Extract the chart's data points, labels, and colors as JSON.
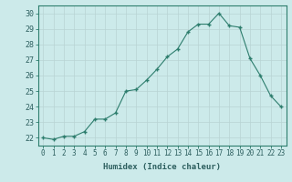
{
  "x": [
    0,
    1,
    2,
    3,
    4,
    5,
    6,
    7,
    8,
    9,
    10,
    11,
    12,
    13,
    14,
    15,
    16,
    17,
    18,
    19,
    20,
    21,
    22,
    23
  ],
  "y": [
    22.0,
    21.9,
    22.1,
    22.1,
    22.4,
    23.2,
    23.2,
    23.6,
    25.0,
    25.1,
    25.7,
    26.4,
    27.2,
    27.7,
    28.8,
    29.3,
    29.3,
    30.0,
    29.2,
    29.1,
    27.1,
    26.0,
    24.7,
    24.0
  ],
  "xlabel": "Humidex (Indice chaleur)",
  "ylim": [
    21.5,
    30.5
  ],
  "xlim": [
    -0.5,
    23.5
  ],
  "line_color": "#2d7d6d",
  "marker_color": "#2d7d6d",
  "bg_color": "#cceaea",
  "grid_color": "#b8d4d4",
  "tick_label_color": "#2d5f5f",
  "yticks": [
    22,
    23,
    24,
    25,
    26,
    27,
    28,
    29,
    30
  ],
  "xticks": [
    0,
    1,
    2,
    3,
    4,
    5,
    6,
    7,
    8,
    9,
    10,
    11,
    12,
    13,
    14,
    15,
    16,
    17,
    18,
    19,
    20,
    21,
    22,
    23
  ],
  "tick_fontsize": 5.5,
  "xlabel_fontsize": 6.5
}
